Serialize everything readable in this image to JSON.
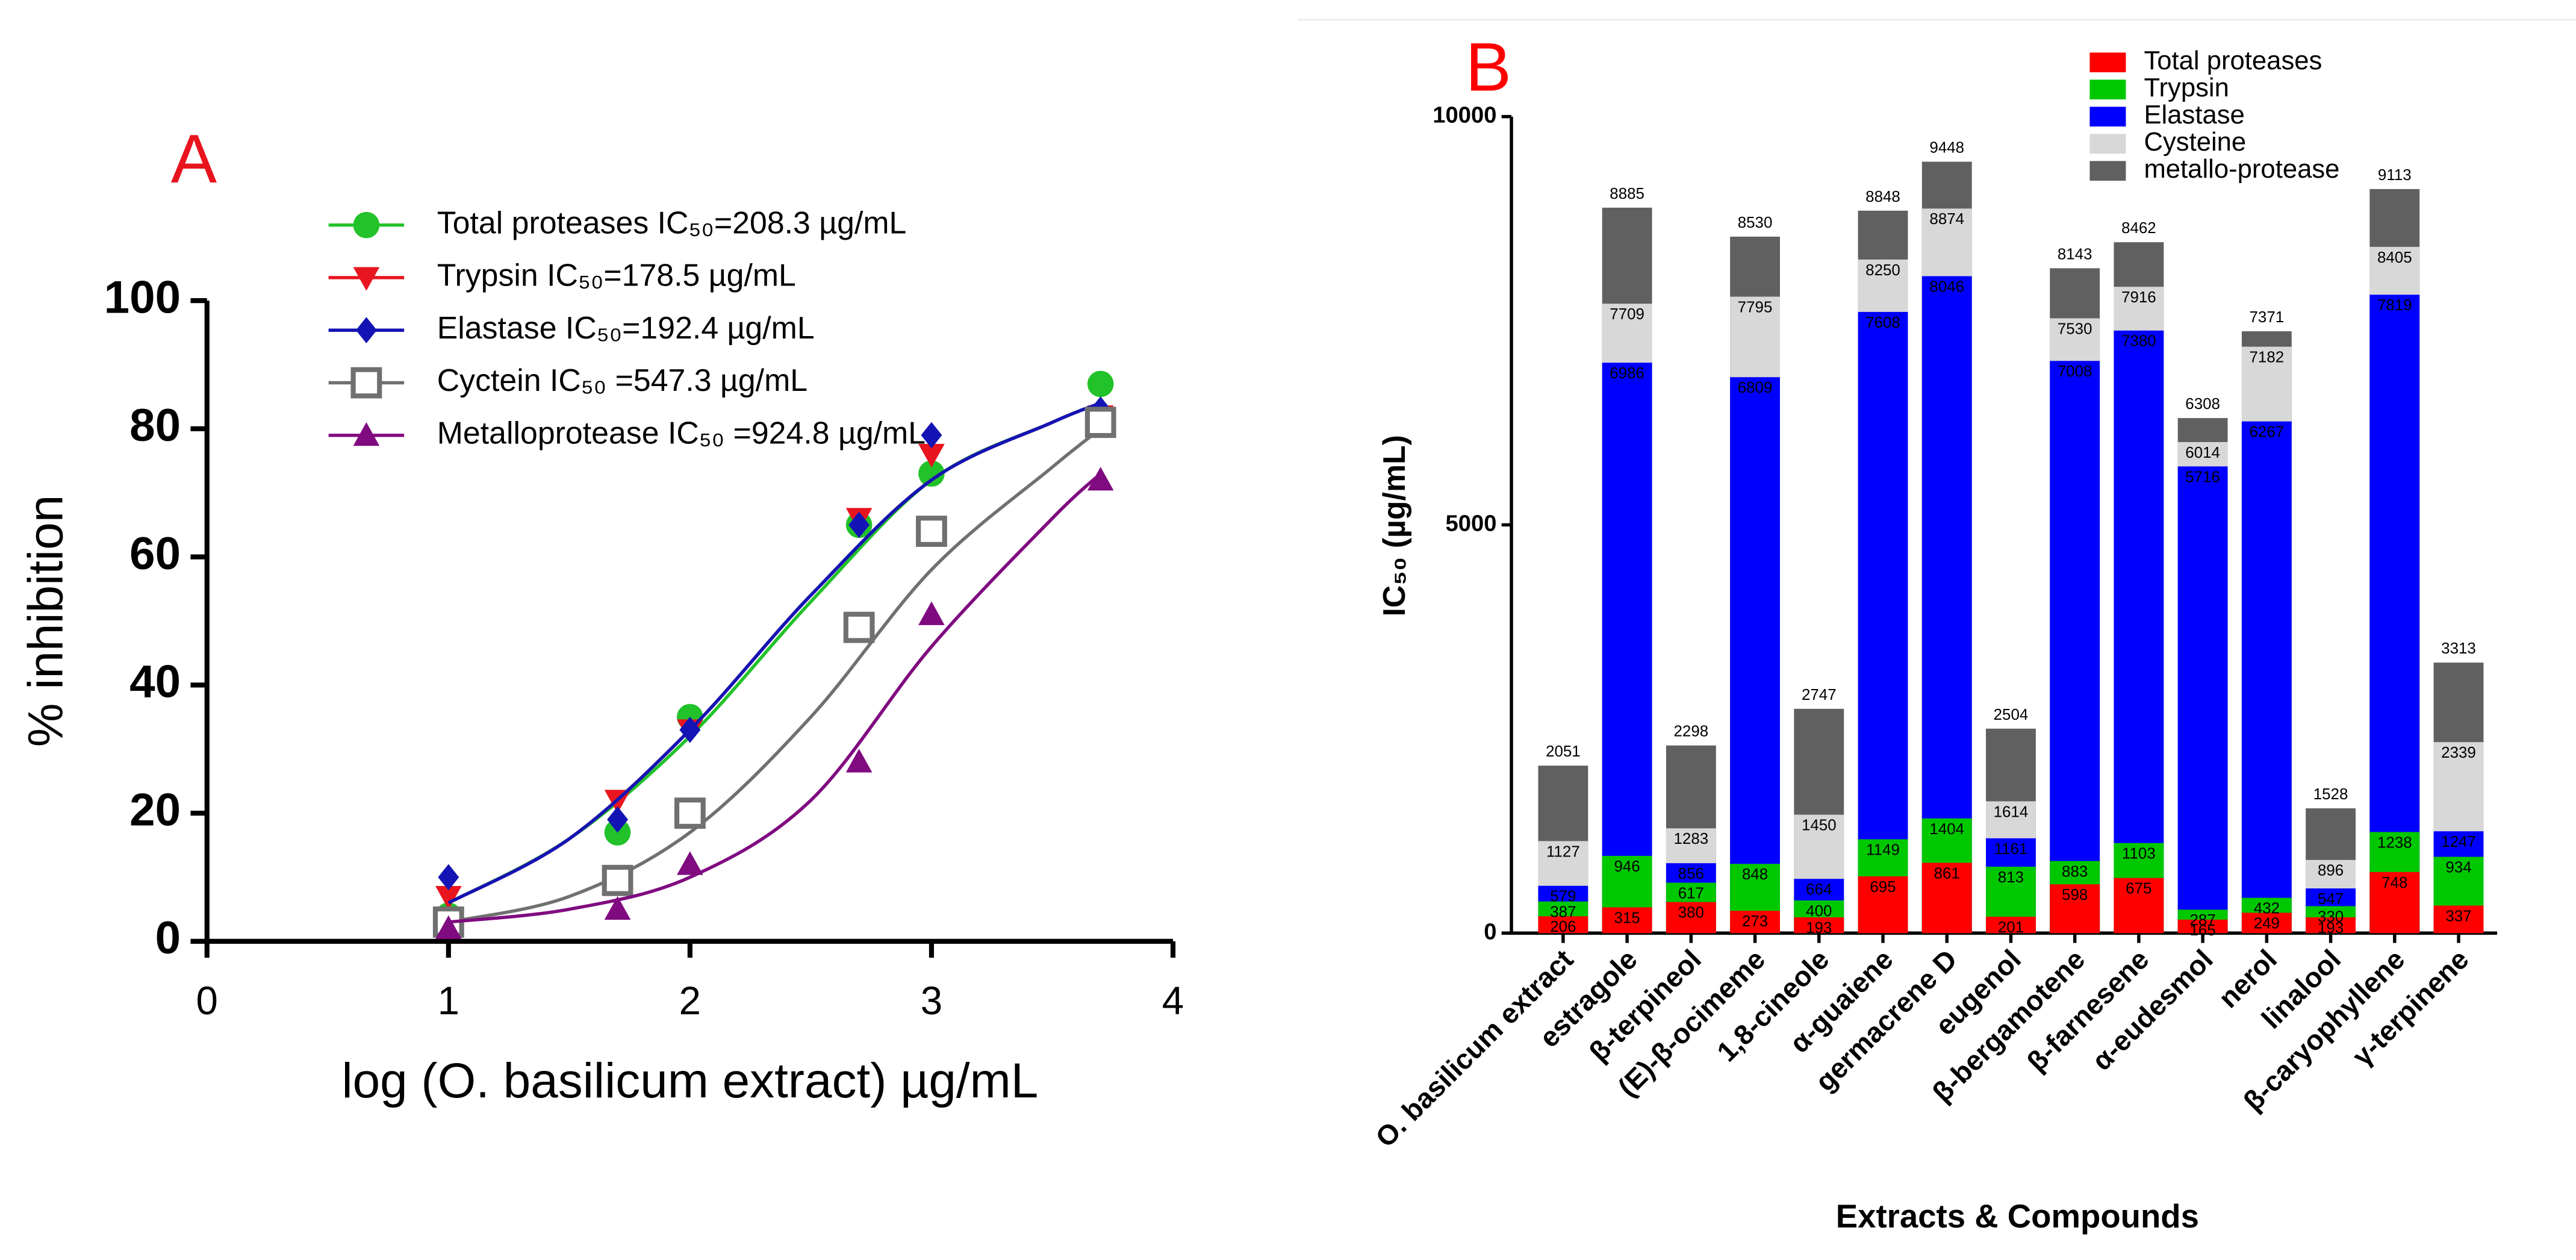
{
  "chart_data": [
    {
      "type": "line",
      "title": "A",
      "xlabel": "log (O. basilicum extract) µg/mL",
      "ylabel": "% inhibition",
      "x": [
        1,
        1.7,
        2,
        2.7,
        3,
        3.7
      ],
      "fit_x": [
        1,
        1.5,
        2,
        2.5,
        3,
        3.5,
        3.7
      ],
      "xlim": [
        0,
        4
      ],
      "xticks": [
        0,
        1,
        2,
        3,
        4
      ],
      "ylim": [
        0,
        100
      ],
      "yticks": [
        0,
        20,
        40,
        60,
        80,
        100
      ],
      "grid": false,
      "series": [
        {
          "name": "Total proteases IC₅₀=208.3 µg/mL",
          "color": "#22c22a",
          "marker": "circle",
          "values": [
            4,
            17,
            35,
            65,
            73,
            87
          ],
          "fit": [
            6,
            16,
            32,
            53,
            72,
            81,
            84
          ]
        },
        {
          "name": "Trypsin IC₅₀=178.5 µg/mL",
          "color": "#e8141e",
          "marker": "triangle-down",
          "values": [
            7,
            22,
            33,
            66,
            76,
            82
          ],
          "fit": [
            6,
            16,
            33,
            54,
            72,
            81,
            84
          ]
        },
        {
          "name": "Elastase IC₅₀=192.4 µg/mL",
          "color": "#1414b4",
          "marker": "diamond",
          "values": [
            10,
            19,
            33,
            65,
            79,
            83
          ],
          "fit": [
            6,
            16,
            33,
            54,
            72,
            81,
            84
          ]
        },
        {
          "name": "Cyctein IC₅₀ =547.3 µg/mL",
          "color": "#707070",
          "marker": "square-open",
          "values": [
            3,
            9.5,
            20,
            49,
            64,
            81
          ],
          "fit": [
            3,
            7,
            17,
            35,
            58,
            74,
            80
          ]
        },
        {
          "name": "Metalloprotease IC₅₀ =924.8 µg/mL",
          "color": "#800a80",
          "marker": "triangle",
          "values": [
            2,
            5,
            12,
            28,
            51,
            72
          ],
          "fit": [
            3,
            5,
            10,
            22,
            46,
            66,
            73
          ]
        }
      ]
    },
    {
      "type": "bar",
      "title": "B",
      "xlabel": "Extracts & Compounds",
      "ylabel": "IC₅₀ (µg/mL)",
      "categories": [
        "O. basilicum extract",
        "estragole",
        "β-terpineol",
        "(E)-β-ocimeme",
        "1,8-cineole",
        "α-guaiene",
        "germacrene D",
        "eugenol",
        "β-bergamotene",
        "β-farnesene",
        "α-eudesmol",
        "nerol",
        "linalool",
        "β-caryophyllene",
        "γ-terpinene"
      ],
      "ylim": [
        0,
        10000
      ],
      "yticks": [
        0,
        5000,
        10000
      ],
      "grid": false,
      "series": [
        {
          "name": "Total proteases",
          "color": "#ff0000",
          "values": [
            206,
            315,
            380,
            273,
            193,
            695,
            861,
            201,
            598,
            675,
            165,
            249,
            193,
            748,
            337
          ]
        },
        {
          "name": "Trypsin",
          "color": "#00c800",
          "values": [
            387,
            946,
            617,
            848,
            400,
            1149,
            1404,
            813,
            883,
            1103,
            287,
            432,
            330,
            1238,
            934
          ]
        },
        {
          "name": "Elastase",
          "color": "#0000ff",
          "values": [
            579,
            6986,
            856,
            6809,
            664,
            7608,
            8046,
            1161,
            7008,
            7380,
            5716,
            6267,
            547,
            7819,
            1247
          ]
        },
        {
          "name": "Cysteine",
          "color": "#d8d8d8",
          "values": [
            1127,
            7709,
            1283,
            7795,
            1450,
            8250,
            8874,
            1614,
            7530,
            7916,
            6014,
            7182,
            896,
            8405,
            2339
          ]
        },
        {
          "name": "metallo-protease",
          "color": "#606060",
          "values": [
            2051,
            8885,
            2298,
            8530,
            2747,
            8848,
            9448,
            2504,
            8143,
            8462,
            6308,
            7371,
            1528,
            9113,
            3313
          ]
        }
      ]
    }
  ]
}
